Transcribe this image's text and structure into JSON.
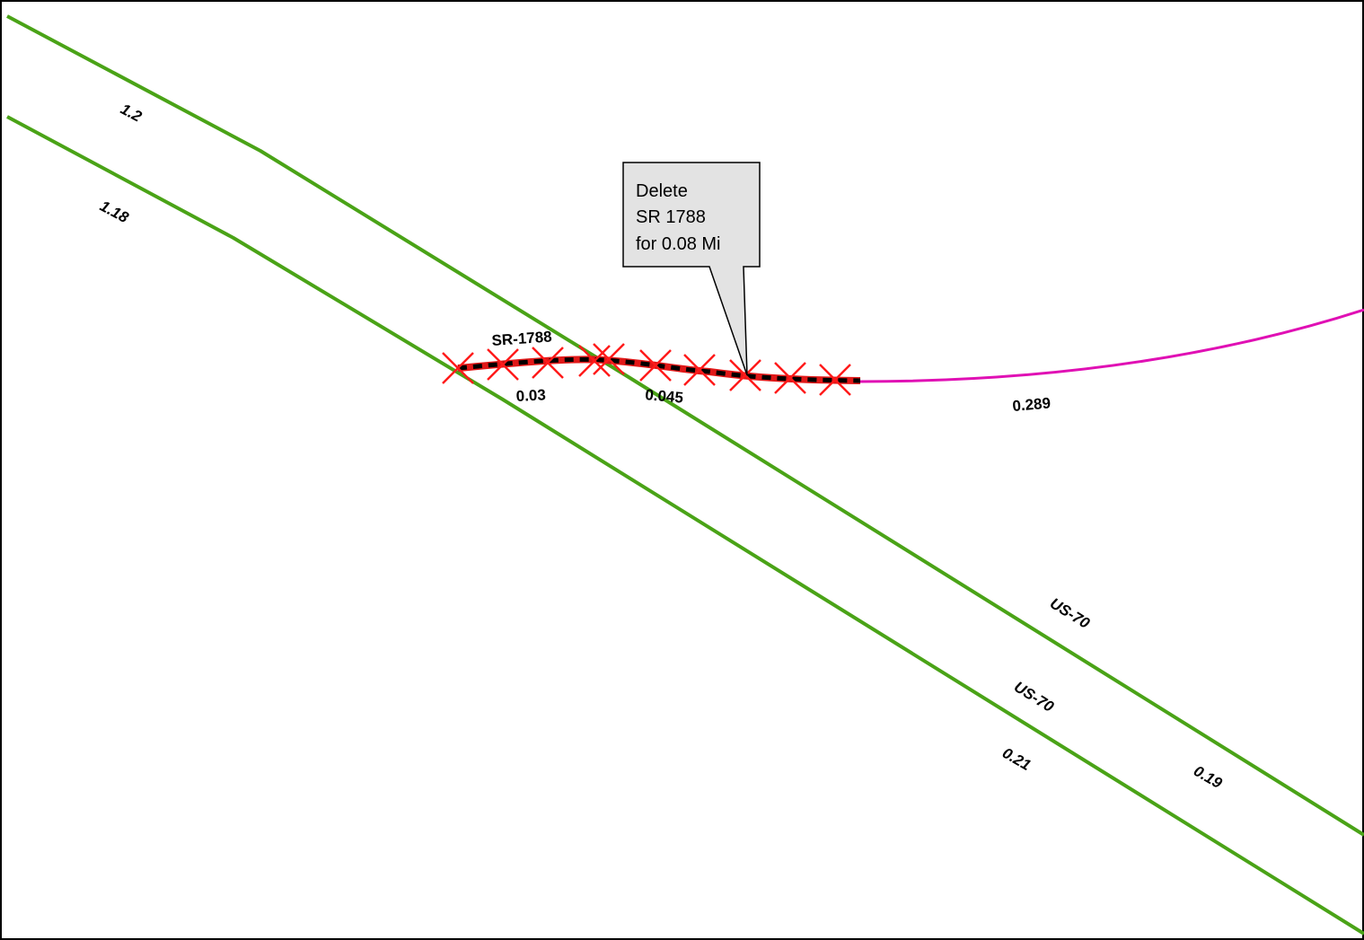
{
  "map": {
    "colors": {
      "us_highway": "#4aa317",
      "local_road": "#e010b4",
      "deleted_segment": "#e01818",
      "deleted_dash": "#000000",
      "delete_marker": "#ff1a1a",
      "callout_fill": "#e3e3e3",
      "frame": "#000000"
    },
    "road_labels": {
      "sr_1788": "SR-1788",
      "us70_north": "US-70",
      "us70_south": "US-70"
    },
    "mileage_labels": {
      "north_upper": "1.2",
      "south_upper": "1.18",
      "sr_segment_a": "0.03",
      "sr_segment_b": "0.045",
      "local_road": "0.289",
      "south_lower": "0.21",
      "north_lower": "0.19"
    },
    "callout": {
      "line1": "Delete",
      "line2": "SR 1788",
      "line3": "for 0.08 Mi"
    },
    "icons": {
      "delete_marker": "x-mark-icon"
    }
  }
}
